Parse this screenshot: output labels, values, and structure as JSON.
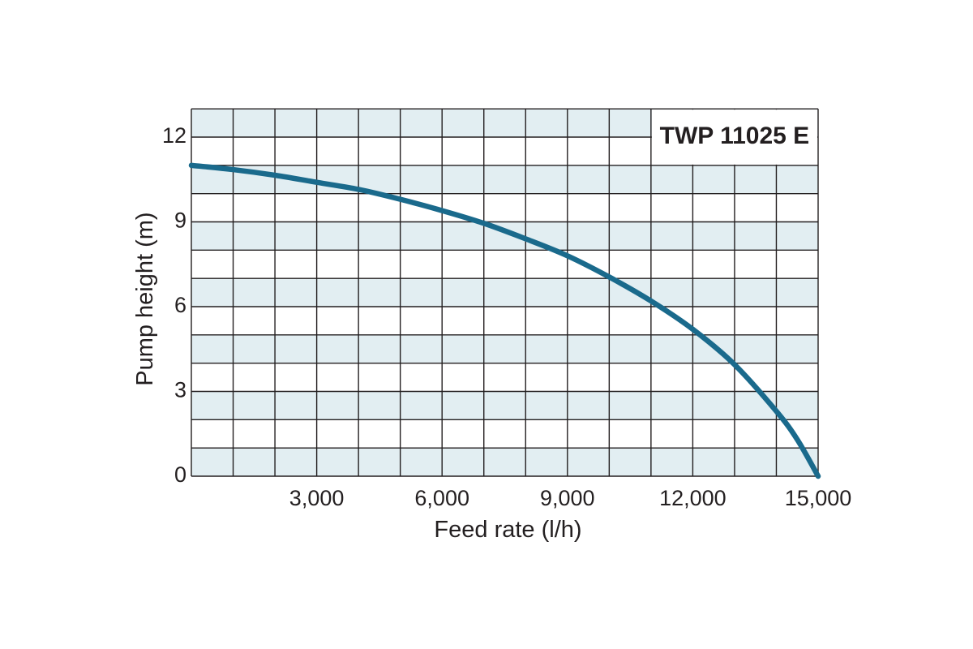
{
  "chart_data": {
    "type": "line",
    "title": "TWP 11025 E",
    "xlabel": "Feed rate (l/h)",
    "ylabel": "Pump height (m)",
    "xlim": [
      0,
      15000
    ],
    "ylim": [
      0,
      13
    ],
    "x_ticks": [
      {
        "value": 3000,
        "label": "3,000"
      },
      {
        "value": 6000,
        "label": "6,000"
      },
      {
        "value": 9000,
        "label": "9,000"
      },
      {
        "value": 12000,
        "label": "12,000"
      },
      {
        "value": 15000,
        "label": "15,000"
      }
    ],
    "y_ticks": [
      {
        "value": 0,
        "label": "0"
      },
      {
        "value": 3,
        "label": "3"
      },
      {
        "value": 6,
        "label": "6"
      },
      {
        "value": 9,
        "label": "9"
      },
      {
        "value": 12,
        "label": "12"
      }
    ],
    "grid": true,
    "grid_x_step": 1000,
    "grid_y_step": 1,
    "legend": "none",
    "colors": {
      "line": "#1a6a8c",
      "band": "#e2eef2",
      "grid": "#231f20",
      "text": "#231f20"
    },
    "series": [
      {
        "x": [
          0,
          1000,
          2000,
          3000,
          4000,
          5000,
          6000,
          7000,
          8000,
          9000,
          10000,
          11000,
          12000,
          13000,
          14000,
          14500,
          15000
        ],
        "values": [
          11.0,
          10.85,
          10.65,
          10.4,
          10.15,
          9.8,
          9.4,
          8.95,
          8.4,
          7.8,
          7.05,
          6.2,
          5.2,
          3.95,
          2.3,
          1.3,
          0.0
        ]
      }
    ]
  }
}
